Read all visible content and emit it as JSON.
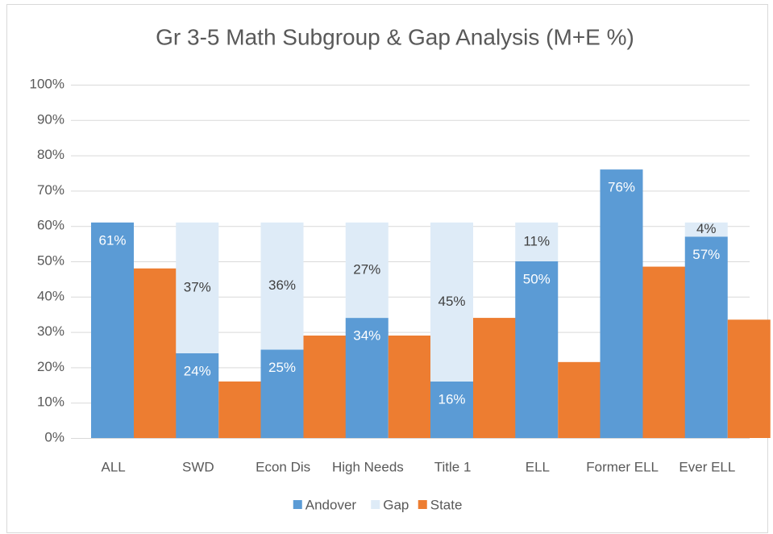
{
  "chart_data": {
    "type": "bar",
    "title": "Gr 3-5 Math Subgroup & Gap Analysis (M+E %)",
    "categories": [
      "ALL",
      "SWD",
      "Econ Dis",
      "High Needs",
      "Title 1",
      "ELL",
      "Former ELL",
      "Ever ELL"
    ],
    "series": [
      {
        "name": "Andover",
        "color": "#5b9bd5",
        "stack": "a",
        "values": [
          61,
          24,
          25,
          34,
          16,
          50,
          76,
          57
        ],
        "value_labels": [
          "61%",
          "24%",
          "25%",
          "34%",
          "16%",
          "50%",
          "76%",
          "57%"
        ]
      },
      {
        "name": "Gap",
        "color": "#deebf7",
        "stack": "a",
        "values": [
          null,
          37,
          36,
          27,
          45,
          11,
          null,
          4
        ],
        "value_labels": [
          null,
          "37%",
          "36%",
          "27%",
          "45%",
          "11%",
          null,
          "4%"
        ]
      },
      {
        "name": "State",
        "color": "#ed7d31",
        "stack": "b",
        "values": [
          48,
          16,
          29,
          29,
          34,
          21.5,
          48.5,
          33.5
        ]
      }
    ],
    "ylim": [
      0,
      100
    ],
    "yticks": [
      {
        "value": 0,
        "label": "0%"
      },
      {
        "value": 10,
        "label": "10%"
      },
      {
        "value": 20,
        "label": "20%"
      },
      {
        "value": 30,
        "label": "30%"
      },
      {
        "value": 40,
        "label": "40%"
      },
      {
        "value": 50,
        "label": "50%"
      },
      {
        "value": 60,
        "label": "60%"
      },
      {
        "value": 70,
        "label": "70%"
      },
      {
        "value": 80,
        "label": "80%"
      },
      {
        "value": 90,
        "label": "90%"
      },
      {
        "value": 100,
        "label": "100%"
      }
    ],
    "grid": true,
    "legend": "bottom"
  }
}
